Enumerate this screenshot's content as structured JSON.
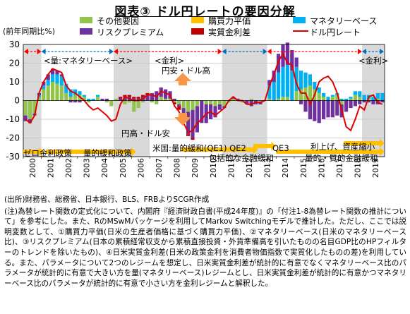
{
  "title": "図表③ ドル円レートの要因分解",
  "source": "(出所)財務省、総務省、日本銀行、BLS、FRBよりSCGR作成",
  "note": "(注)為替レート関数の定式化について、内閣府『経済財政白書(平成24年度)』の「付注1-8為替レート関数の推計について」を参考にした。また、RのMSwMパッケージを利用してMarkov Switchingモデルで推計した。ただし、ここでは説明変数として、①購買力平価(日米の生産者価格に基づく購買力平価)、②マネタリーベース(日米のマネタリーベース比)、③リスクプレミアム(日本の累積経常収支から累積直接投資・外貨準備高を引いたものの名目GDP比のHPフィルターのトレンドを除いたもの)、④日米実質金利差(日米の政策金利を消費者物価指数で実質化したものの差)を利用している。また、パラメータについて2つのレジームを想定し、日米実質金利差が統計的に有意でなくマネタリーベース比のパラメータが統計的に有意で大きい方を量(マネタリーベース)レジームとし、日米実質金利差が統計的に有意かつマネタリーベース比のパラメータが統計的に有意で小さい方を金利レジームと解釈した。",
  "colors": {
    "other": "#92c44c",
    "ppp": "#ffc000",
    "mb": "#00b0f0",
    "risk": "#7030a0",
    "rate": "#c00000",
    "usdjpy": "#e00000",
    "shade": "#d9d9d9",
    "arrow_red": "#ff0000",
    "arrow_blue": "#0070c0",
    "arrow_orange": "#ffc000",
    "updown": "#f79646"
  },
  "chart_data": {
    "type": "bar",
    "ylabel": "(前年同期比%)",
    "ylim": [
      -30,
      30
    ],
    "yticks": [
      30,
      20,
      10,
      0,
      -10,
      -20,
      -30
    ],
    "x_range": [
      "2000Q1",
      "2019Q4"
    ],
    "xticks": [
      "2000",
      "2001",
      "2002",
      "2003",
      "2004",
      "2005",
      "2006",
      "2007",
      "2008",
      "2009",
      "2010",
      "2011",
      "2012",
      "2013",
      "2014",
      "2015",
      "2016",
      "2017",
      "2018",
      "2019"
    ],
    "legend": [
      "その他要因",
      "購買力平価",
      "マネタリーベース",
      "リスクプレミアム",
      "実質金利差",
      "ドル円レート"
    ],
    "legend_placement": "top",
    "stacked": true,
    "series": [
      {
        "name": "その他要因",
        "type": "bar",
        "values": [
          -8,
          -10,
          -7,
          2,
          6,
          8,
          10,
          9,
          8,
          4,
          2,
          3,
          3,
          2,
          -1,
          0,
          2,
          0,
          -1,
          -3,
          1,
          0,
          -2,
          -1,
          -6,
          -4,
          -1,
          0,
          -1,
          -2,
          2,
          1,
          1,
          -1,
          -2,
          -4,
          -6,
          -5,
          -3,
          0,
          -2,
          -2,
          -3,
          -2,
          -3,
          -1,
          1,
          0,
          -1,
          0,
          1,
          0,
          -1,
          0,
          1,
          0,
          1,
          2,
          2,
          0,
          5,
          6,
          7,
          8,
          6,
          4,
          2,
          0,
          2,
          3,
          -2,
          0,
          1,
          3,
          2,
          0,
          1,
          0,
          1,
          0
        ]
      },
      {
        "name": "購買力平価",
        "type": "bar",
        "values": [
          0,
          0,
          0,
          0,
          0,
          0,
          0,
          0,
          0,
          0,
          0,
          0,
          0,
          0,
          0,
          0,
          0,
          0,
          0,
          0,
          0,
          0,
          0,
          0,
          0,
          0,
          0,
          0,
          0,
          0,
          0,
          0,
          0,
          0,
          0,
          0,
          0,
          0,
          0,
          0,
          0,
          0,
          0,
          0,
          0,
          0,
          0,
          0,
          0,
          0,
          0,
          0,
          0,
          0,
          0,
          0,
          0,
          0,
          0,
          0,
          0,
          0,
          0,
          0,
          0,
          0,
          0,
          0,
          0,
          0,
          0,
          0,
          0,
          0,
          0,
          0,
          0,
          0,
          0,
          0
        ]
      },
      {
        "name": "マネタリーベース",
        "type": "bar",
        "values": [
          0,
          0,
          0,
          1,
          2,
          3,
          4,
          5,
          5,
          5,
          4,
          3,
          2,
          1,
          1,
          1,
          1,
          0,
          0,
          0,
          0,
          0,
          0,
          0,
          0,
          0,
          0,
          0,
          0,
          0,
          0,
          0,
          0,
          0,
          0,
          0,
          0,
          0,
          0,
          0,
          0,
          0,
          0,
          0,
          0,
          0,
          0,
          0,
          0,
          0,
          0,
          0,
          0,
          0,
          7,
          10,
          14,
          16,
          17,
          16,
          13,
          10,
          8,
          6,
          4,
          3,
          2,
          2,
          1,
          1,
          1,
          1,
          1,
          2,
          3,
          3,
          2,
          2,
          3,
          4
        ]
      },
      {
        "name": "リスクプレミアム",
        "type": "bar",
        "values": [
          -3,
          -2,
          -1,
          1,
          2,
          3,
          3,
          2,
          1,
          0,
          -1,
          -1,
          -1,
          0,
          0,
          0,
          0,
          1,
          1,
          0,
          0,
          1,
          2,
          2,
          1,
          1,
          2,
          3,
          4,
          5,
          5,
          5,
          4,
          1,
          -1,
          -5,
          -12,
          -15,
          -14,
          -12,
          -10,
          -8,
          -6,
          -3,
          -1,
          0,
          1,
          1,
          0,
          -2,
          -3,
          -2,
          -1,
          0,
          3,
          6,
          10,
          12,
          12,
          11,
          5,
          -2,
          -6,
          -10,
          -11,
          -12,
          -10,
          -9,
          -9,
          -8,
          -7,
          -6,
          -4,
          -3,
          -2,
          -1,
          -1,
          -2,
          -2,
          -1
        ]
      },
      {
        "name": "実質金利差",
        "type": "bar",
        "values": [
          0,
          0,
          0,
          0,
          0,
          0,
          0,
          0,
          0,
          0,
          0,
          0,
          0,
          0,
          0,
          0,
          0,
          0,
          0,
          0,
          0,
          1,
          1,
          1,
          1,
          1,
          1,
          1,
          0,
          0,
          0,
          0,
          0,
          -1,
          -2,
          -2,
          -1,
          -1,
          0,
          0,
          0,
          0,
          0,
          0,
          0,
          0,
          0,
          0,
          0,
          0,
          0,
          0,
          0,
          0,
          0,
          0,
          0,
          0,
          0,
          0,
          0,
          0,
          0,
          0,
          0,
          0,
          0,
          0,
          0,
          0,
          0,
          0,
          0,
          0,
          0,
          0,
          0,
          0,
          0,
          0
        ]
      },
      {
        "name": "ドル円レート",
        "type": "line",
        "values": [
          -10,
          -12,
          -8,
          4,
          10,
          14,
          17,
          16,
          15,
          8,
          5,
          4,
          2,
          0,
          -3,
          -5,
          -4,
          -6,
          -8,
          -11,
          -10,
          -2,
          2,
          1,
          0,
          0,
          1,
          3,
          3,
          2,
          5,
          4,
          3,
          -3,
          -6,
          -12,
          -17,
          -16,
          -12,
          -10,
          -7,
          -6,
          -8,
          -6,
          -4,
          0,
          2,
          0,
          0,
          -2,
          -2,
          -1,
          -1,
          0,
          8,
          14,
          21,
          25,
          20,
          19,
          9,
          4,
          4,
          -2,
          3,
          10,
          12,
          13,
          10,
          4,
          -5,
          -14,
          -16,
          -10,
          -3,
          -5,
          2,
          3,
          -1,
          -2
        ]
      }
    ]
  },
  "annotations": {
    "regime_ryo": "<量:マネタリーベース>",
    "regime_kinri": "<金利>",
    "regime_kinri_right": "<金利>",
    "yen_high": "円安・ドル高",
    "yen_low": "円高・ドル安",
    "zero_rate": "ゼロ金利政策",
    "qe_policy": "量的緩和政策",
    "us_qe": "米国:量的緩和(QE1) QE2",
    "comprehensive": "包括的な金融緩和",
    "qe3": "QE3",
    "rate_hike": "利上げ、資産縮小",
    "qqe": "量的・質的金融緩和"
  }
}
